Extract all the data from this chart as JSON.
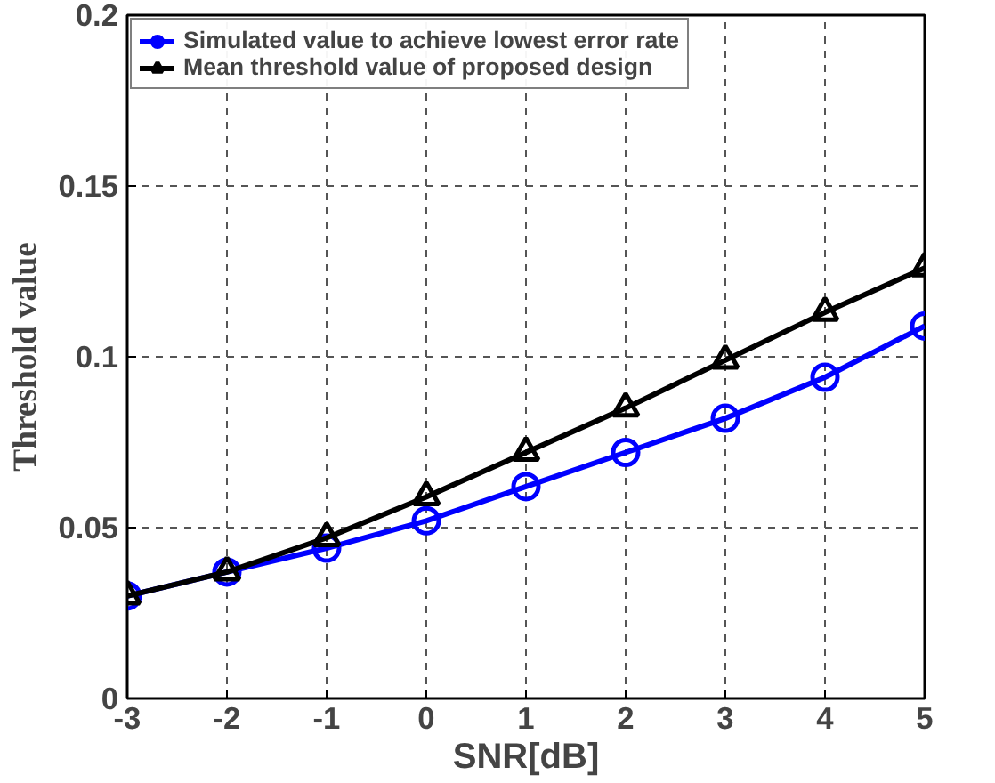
{
  "chart_data": {
    "type": "line",
    "xlabel": "SNR[dB]",
    "ylabel": "Threshold value",
    "x": [
      -3,
      -2,
      -1,
      0,
      1,
      2,
      3,
      4,
      5
    ],
    "series": [
      {
        "name": "Simulated value to achieve lowest error rate",
        "color": "#0000ff",
        "marker": "circle",
        "values": [
          0.03,
          0.037,
          0.044,
          0.052,
          0.062,
          0.072,
          0.082,
          0.094,
          0.109
        ]
      },
      {
        "name": "Mean threshold value of proposed design",
        "color": "#000000",
        "marker": "triangle",
        "values": [
          0.03,
          0.037,
          0.047,
          0.059,
          0.072,
          0.085,
          0.099,
          0.113,
          0.126
        ]
      }
    ],
    "xlim": [
      -3,
      5
    ],
    "ylim": [
      0,
      0.2
    ],
    "xticks": [
      -3,
      -2,
      -1,
      0,
      1,
      2,
      3,
      4,
      5
    ],
    "yticks": [
      0,
      0.05,
      0.1,
      0.15,
      0.2
    ],
    "grid": true,
    "legend": "top left",
    "line_style": "solid"
  }
}
